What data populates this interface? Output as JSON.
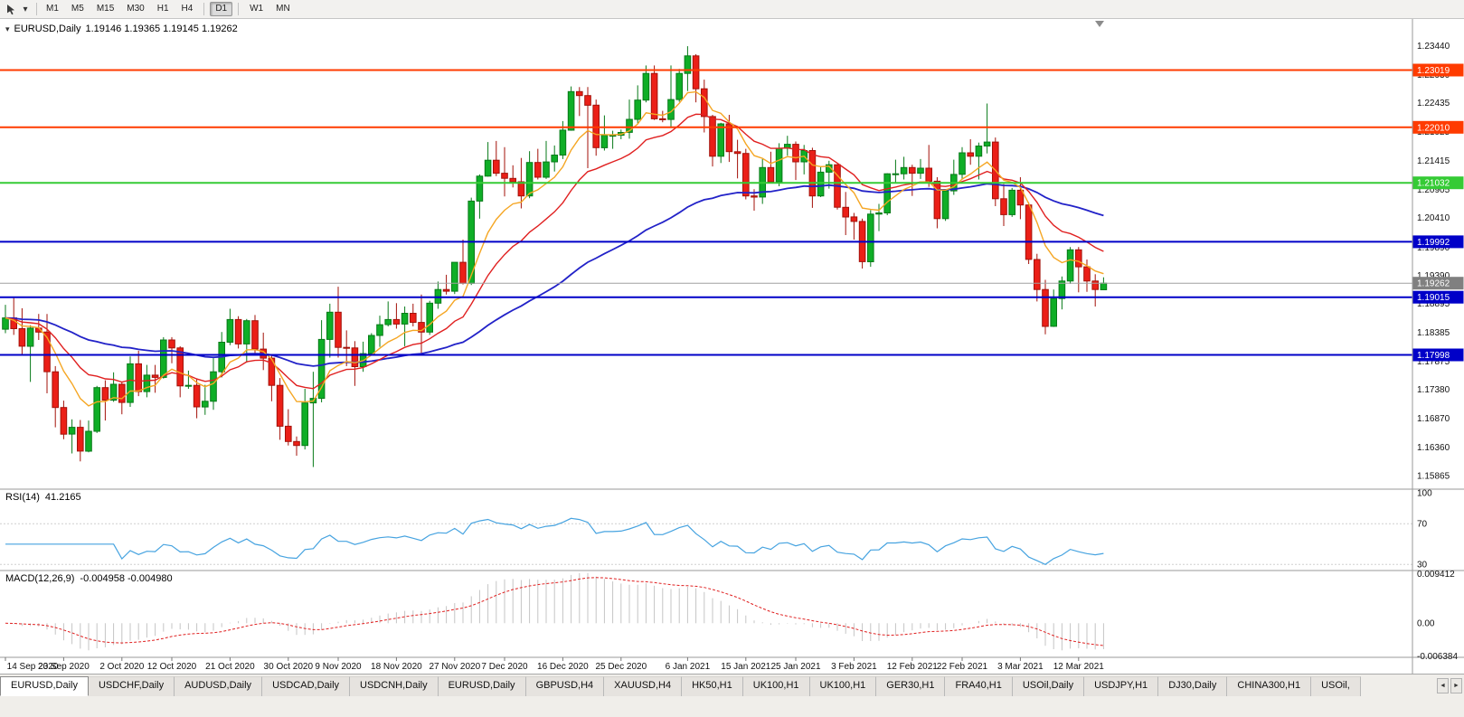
{
  "toolbar": {
    "timeframes": [
      {
        "label": "M1"
      },
      {
        "label": "M5"
      },
      {
        "label": "M15"
      },
      {
        "label": "M30"
      },
      {
        "label": "H1"
      },
      {
        "label": "H4"
      },
      {
        "label": "D1",
        "active": true
      },
      {
        "label": "W1"
      },
      {
        "label": "MN"
      }
    ]
  },
  "chart": {
    "title": {
      "symbol": "EURUSD,Daily",
      "ohlc": "1.19146 1.19365 1.19145 1.19262"
    }
  },
  "chart_data": {
    "type": "candlestick",
    "symbol": "EURUSD",
    "period": "Daily",
    "y_range": [
      1.1563,
      1.2392
    ],
    "colors": {
      "up": "#0fae27",
      "up_dark": "#077a18",
      "down": "#eb1f17",
      "down_dark": "#a31109",
      "background": "#ffffff",
      "axis_line": "#9a9a9a"
    },
    "price_axis": [
      "1.23440",
      "1.22930",
      "1.22435",
      "1.21925",
      "1.21415",
      "1.20905",
      "1.20410",
      "1.19890",
      "1.19390",
      "1.18895",
      "1.18385",
      "1.17875",
      "1.17380",
      "1.16870",
      "1.16360",
      "1.15865"
    ],
    "x_labels": [
      {
        "t": "14 Sep 2020",
        "i": 0
      },
      {
        "t": "23 Sep 2020",
        "i": 7
      },
      {
        "t": "2 Oct 2020",
        "i": 14
      },
      {
        "t": "12 Oct 2020",
        "i": 20
      },
      {
        "t": "21 Oct 2020",
        "i": 27
      },
      {
        "t": "30 Oct 2020",
        "i": 34
      },
      {
        "t": "9 Nov 2020",
        "i": 40
      },
      {
        "t": "18 Nov 2020",
        "i": 47
      },
      {
        "t": "27 Nov 2020",
        "i": 54
      },
      {
        "t": "7 Dec 2020",
        "i": 60
      },
      {
        "t": "16 Dec 2020",
        "i": 67
      },
      {
        "t": "25 Dec 2020",
        "i": 74
      },
      {
        "t": "6 Jan 2021",
        "i": 82
      },
      {
        "t": "15 Jan 2021",
        "i": 89
      },
      {
        "t": "25 Jan 2021",
        "i": 95
      },
      {
        "t": "3 Feb 2021",
        "i": 102
      },
      {
        "t": "12 Feb 2021",
        "i": 109
      },
      {
        "t": "22 Feb 2021",
        "i": 115
      },
      {
        "t": "3 Mar 2021",
        "i": 122
      },
      {
        "t": "12 Mar 2021",
        "i": 129
      }
    ],
    "levels": [
      {
        "price": 1.23019,
        "label": "1.23019",
        "color": "#ff3b00"
      },
      {
        "price": 1.2201,
        "label": "1.22010",
        "color": "#ff3b00"
      },
      {
        "price": 1.21032,
        "label": "1.21032",
        "color": "#35cb35"
      },
      {
        "price": 1.19992,
        "label": "1.19992",
        "color": "#0000c8"
      },
      {
        "price": 1.19015,
        "label": "1.19015",
        "color": "#0000c8"
      },
      {
        "price": 1.17998,
        "label": "1.17998",
        "color": "#0000c8"
      }
    ],
    "current_price": {
      "price": 1.19262,
      "label": "1.19262",
      "color": "#808080"
    },
    "moving_averages": [
      {
        "name": "ma-slow",
        "period": 55,
        "color": "#2222c8",
        "width": 1.8
      },
      {
        "name": "ma-mid",
        "period": 17,
        "color": "#e02020",
        "width": 1.4
      },
      {
        "name": "ma-fast",
        "period": 8,
        "color": "#f5a623",
        "width": 1.4
      }
    ],
    "rsi": {
      "label": "RSI(14)",
      "value": "41.2165",
      "period": 14,
      "color": "#46a3e0",
      "axis": [
        "100",
        "70",
        "30"
      ],
      "guides": [
        70,
        30
      ],
      "range": [
        24,
        104
      ]
    },
    "macd": {
      "label": "MACD(12,26,9)",
      "values": "-0.004958 -0.004980",
      "fast": 12,
      "slow": 26,
      "signal": 9,
      "hist_color": "#c4c4c4",
      "signal_color": "#e02020",
      "axis": [
        "0.009412",
        "0.00",
        "-0.006384"
      ],
      "range": [
        -0.00655,
        0.01012
      ]
    },
    "candles": [
      [
        1.1845,
        1.1888,
        1.1838,
        1.1865
      ],
      [
        1.1865,
        1.19,
        1.1835,
        1.1846
      ],
      [
        1.1846,
        1.1882,
        1.18,
        1.1815
      ],
      [
        1.1815,
        1.1852,
        1.1752,
        1.1847
      ],
      [
        1.1847,
        1.1872,
        1.1826,
        1.184
      ],
      [
        1.184,
        1.1872,
        1.1732,
        1.177
      ],
      [
        1.177,
        1.178,
        1.1672,
        1.1707
      ],
      [
        1.1707,
        1.1719,
        1.1651,
        1.166
      ],
      [
        1.166,
        1.1686,
        1.1626,
        1.1672
      ],
      [
        1.1672,
        1.1685,
        1.1612,
        1.163
      ],
      [
        1.163,
        1.1684,
        1.1628,
        1.1665
      ],
      [
        1.1665,
        1.1745,
        1.1662,
        1.1742
      ],
      [
        1.1742,
        1.1755,
        1.1684,
        1.172
      ],
      [
        1.172,
        1.1769,
        1.1717,
        1.1748
      ],
      [
        1.1748,
        1.1752,
        1.1695,
        1.1716
      ],
      [
        1.1716,
        1.1797,
        1.1708,
        1.1784
      ],
      [
        1.1784,
        1.1807,
        1.1727,
        1.1735
      ],
      [
        1.1735,
        1.1782,
        1.1725,
        1.1764
      ],
      [
        1.1764,
        1.1782,
        1.1733,
        1.176
      ],
      [
        1.176,
        1.1831,
        1.1758,
        1.1826
      ],
      [
        1.1826,
        1.1831,
        1.1785,
        1.1812
      ],
      [
        1.1812,
        1.1815,
        1.1725,
        1.1745
      ],
      [
        1.1745,
        1.1772,
        1.174,
        1.1746
      ],
      [
        1.1746,
        1.1758,
        1.1688,
        1.1708
      ],
      [
        1.1708,
        1.1747,
        1.1694,
        1.1718
      ],
      [
        1.1718,
        1.1794,
        1.1703,
        1.177
      ],
      [
        1.177,
        1.184,
        1.176,
        1.1822
      ],
      [
        1.1822,
        1.1881,
        1.1817,
        1.1862
      ],
      [
        1.1862,
        1.1868,
        1.1811,
        1.1819
      ],
      [
        1.1819,
        1.1863,
        1.1786,
        1.186
      ],
      [
        1.186,
        1.187,
        1.1803,
        1.181
      ],
      [
        1.181,
        1.1839,
        1.1773,
        1.1794
      ],
      [
        1.1794,
        1.1799,
        1.1718,
        1.1746
      ],
      [
        1.1746,
        1.1759,
        1.165,
        1.1674
      ],
      [
        1.1674,
        1.1704,
        1.164,
        1.1647
      ],
      [
        1.1647,
        1.1656,
        1.1622,
        1.164
      ],
      [
        1.164,
        1.174,
        1.1633,
        1.1715
      ],
      [
        1.1715,
        1.177,
        1.1602,
        1.1723
      ],
      [
        1.1723,
        1.1861,
        1.1716,
        1.1827
      ],
      [
        1.1827,
        1.189,
        1.1795,
        1.1875
      ],
      [
        1.1875,
        1.192,
        1.1795,
        1.1813
      ],
      [
        1.1813,
        1.1843,
        1.178,
        1.1812
      ],
      [
        1.1812,
        1.1824,
        1.1745,
        1.1779
      ],
      [
        1.1779,
        1.1823,
        1.177,
        1.1802
      ],
      [
        1.1802,
        1.1838,
        1.1799,
        1.1834
      ],
      [
        1.1834,
        1.1869,
        1.1814,
        1.1853
      ],
      [
        1.1853,
        1.1894,
        1.185,
        1.1862
      ],
      [
        1.1862,
        1.1891,
        1.1846,
        1.1854
      ],
      [
        1.1854,
        1.1885,
        1.1815,
        1.1873
      ],
      [
        1.1873,
        1.189,
        1.185,
        1.1857
      ],
      [
        1.1857,
        1.1906,
        1.18,
        1.184
      ],
      [
        1.184,
        1.1895,
        1.1835,
        1.1891
      ],
      [
        1.1891,
        1.1929,
        1.1881,
        1.1915
      ],
      [
        1.1915,
        1.1941,
        1.1906,
        1.1912
      ],
      [
        1.1912,
        1.1963,
        1.1907,
        1.1963
      ],
      [
        1.1963,
        1.2003,
        1.1924,
        1.1926
      ],
      [
        1.1926,
        1.2077,
        1.1923,
        1.2071
      ],
      [
        1.2071,
        1.2118,
        1.204,
        1.2115
      ],
      [
        1.2115,
        1.2175,
        1.2114,
        1.2143
      ],
      [
        1.2143,
        1.2177,
        1.2115,
        1.212
      ],
      [
        1.212,
        1.2166,
        1.2079,
        1.2111
      ],
      [
        1.2111,
        1.2134,
        1.2095,
        1.2105
      ],
      [
        1.2105,
        1.2147,
        1.2058,
        1.208
      ],
      [
        1.208,
        1.2159,
        1.2076,
        1.2139
      ],
      [
        1.2139,
        1.2163,
        1.2109,
        1.2113
      ],
      [
        1.2113,
        1.2177,
        1.211,
        1.214
      ],
      [
        1.214,
        1.2169,
        1.2123,
        1.2152
      ],
      [
        1.2152,
        1.2212,
        1.2145,
        1.2196
      ],
      [
        1.2196,
        1.2273,
        1.2195,
        1.2264
      ],
      [
        1.2264,
        1.2272,
        1.2221,
        1.2257
      ],
      [
        1.2257,
        1.2272,
        1.2129,
        1.224
      ],
      [
        1.224,
        1.225,
        1.2151,
        1.2165
      ],
      [
        1.2165,
        1.2222,
        1.216,
        1.2187
      ],
      [
        1.2187,
        1.2195,
        1.2163,
        1.2187
      ],
      [
        1.2187,
        1.2197,
        1.218,
        1.2192
      ],
      [
        1.2192,
        1.225,
        1.2181,
        1.2215
      ],
      [
        1.2215,
        1.2275,
        1.2208,
        1.2249
      ],
      [
        1.2249,
        1.231,
        1.2245,
        1.2296
      ],
      [
        1.2296,
        1.231,
        1.2214,
        1.2216
      ],
      [
        1.2216,
        1.223,
        1.221,
        1.2215
      ],
      [
        1.2215,
        1.231,
        1.22,
        1.225
      ],
      [
        1.225,
        1.2304,
        1.2246,
        1.2296
      ],
      [
        1.2296,
        1.2344,
        1.2265,
        1.2327
      ],
      [
        1.2327,
        1.233,
        1.2245,
        1.2269
      ],
      [
        1.2269,
        1.2285,
        1.2192,
        1.222
      ],
      [
        1.222,
        1.2223,
        1.2132,
        1.215
      ],
      [
        1.215,
        1.2209,
        1.2138,
        1.2207
      ],
      [
        1.2207,
        1.2223,
        1.214,
        1.2158
      ],
      [
        1.2158,
        1.2179,
        1.2111,
        1.2155
      ],
      [
        1.2155,
        1.2163,
        1.2074,
        1.208
      ],
      [
        1.208,
        1.2092,
        1.2054,
        1.2078
      ],
      [
        1.2078,
        1.2145,
        1.2066,
        1.213
      ],
      [
        1.213,
        1.2158,
        1.2102,
        1.2105
      ],
      [
        1.2105,
        1.2173,
        1.2097,
        1.2164
      ],
      [
        1.2164,
        1.2186,
        1.2151,
        1.2171
      ],
      [
        1.2171,
        1.2176,
        1.2108,
        1.214
      ],
      [
        1.214,
        1.217,
        1.2118,
        1.216
      ],
      [
        1.216,
        1.2165,
        1.2059,
        1.208
      ],
      [
        1.208,
        1.2131,
        1.2078,
        1.2122
      ],
      [
        1.2122,
        1.2142,
        1.2093,
        1.2135
      ],
      [
        1.2135,
        1.2136,
        1.2056,
        1.206
      ],
      [
        1.206,
        1.2087,
        1.2011,
        1.2043
      ],
      [
        1.2043,
        1.205,
        1.2003,
        1.2035
      ],
      [
        1.2035,
        1.204,
        1.1952,
        1.1964
      ],
      [
        1.1964,
        1.2055,
        1.1955,
        1.2048
      ],
      [
        1.2048,
        1.2066,
        1.2018,
        1.205
      ],
      [
        1.205,
        1.212,
        1.2046,
        1.2119
      ],
      [
        1.2119,
        1.2144,
        1.2103,
        1.2119
      ],
      [
        1.2119,
        1.2149,
        1.2109,
        1.213
      ],
      [
        1.213,
        1.2135,
        1.208,
        1.212
      ],
      [
        1.212,
        1.2145,
        1.211,
        1.2129
      ],
      [
        1.2129,
        1.217,
        1.2096,
        1.2106
      ],
      [
        1.2106,
        1.2113,
        1.2023,
        1.204
      ],
      [
        1.204,
        1.209,
        1.2036,
        1.2089
      ],
      [
        1.2089,
        1.2144,
        1.2082,
        1.2118
      ],
      [
        1.2118,
        1.2166,
        1.211,
        1.2156
      ],
      [
        1.2156,
        1.218,
        1.2135,
        1.215
      ],
      [
        1.215,
        1.2174,
        1.2109,
        1.2168
      ],
      [
        1.2168,
        1.2243,
        1.2155,
        1.2175
      ],
      [
        1.2175,
        1.2183,
        1.2062,
        1.2075
      ],
      [
        1.2075,
        1.2101,
        1.2027,
        1.2047
      ],
      [
        1.2047,
        1.2094,
        1.2043,
        1.209
      ],
      [
        1.209,
        1.2113,
        1.2039,
        1.2064
      ],
      [
        1.2064,
        1.2069,
        1.196,
        1.1968
      ],
      [
        1.1968,
        1.1978,
        1.1894,
        1.1915
      ],
      [
        1.1915,
        1.1932,
        1.1836,
        1.185
      ],
      [
        1.185,
        1.1915,
        1.1849,
        1.1899
      ],
      [
        1.1899,
        1.1938,
        1.188,
        1.193
      ],
      [
        1.193,
        1.199,
        1.1925,
        1.1985
      ],
      [
        1.1985,
        1.199,
        1.191,
        1.1955
      ],
      [
        1.1955,
        1.1968,
        1.1911,
        1.193
      ],
      [
        1.193,
        1.1942,
        1.1885,
        1.1915
      ],
      [
        1.19146,
        1.19365,
        1.19145,
        1.19262
      ]
    ]
  },
  "tabs": [
    {
      "label": "EURUSD,Daily",
      "active": true
    },
    {
      "label": "USDCHF,Daily"
    },
    {
      "label": "AUDUSD,Daily"
    },
    {
      "label": "USDCAD,Daily"
    },
    {
      "label": "USDCNH,Daily"
    },
    {
      "label": "EURUSD,Daily"
    },
    {
      "label": "GBPUSD,H4"
    },
    {
      "label": "XAUUSD,H4"
    },
    {
      "label": "HK50,H1"
    },
    {
      "label": "UK100,H1"
    },
    {
      "label": "UK100,H1"
    },
    {
      "label": "GER30,H1"
    },
    {
      "label": "FRA40,H1"
    },
    {
      "label": "USOil,Daily"
    },
    {
      "label": "USDJPY,H1"
    },
    {
      "label": "DJ30,Daily"
    },
    {
      "label": "CHINA300,H1"
    },
    {
      "label": "USOil,"
    }
  ],
  "tab_scroll": {
    "left": "◄",
    "right": "►"
  },
  "title_toggle_icon": "▾"
}
